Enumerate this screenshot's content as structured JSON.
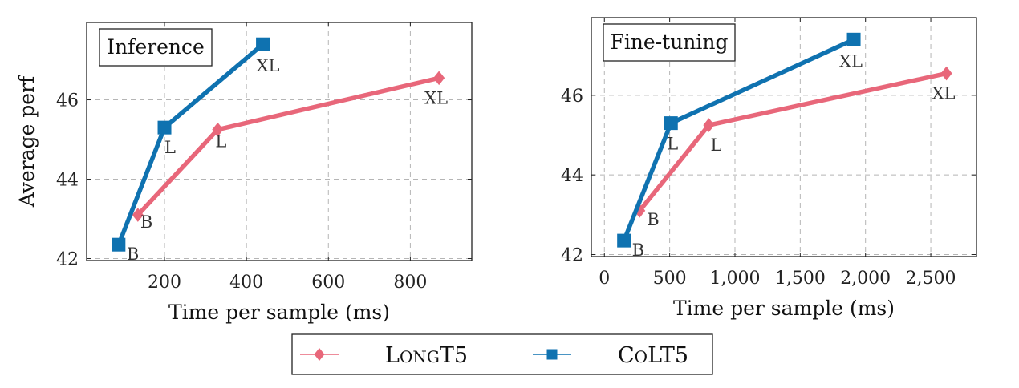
{
  "colors": {
    "longt5": "#e8677a",
    "colt5": "#0f72b0",
    "grid": "#b5b5b5"
  },
  "legend": {
    "items": [
      {
        "name": "LongT5",
        "series": "longt5",
        "marker": "diamond"
      },
      {
        "name": "CoLT5",
        "series": "colt5",
        "marker": "square"
      }
    ]
  },
  "chart_data": [
    {
      "type": "line",
      "title": "Inference",
      "xlabel": "Time per sample (ms)",
      "ylabel": "Average perf",
      "xlim": [
        10,
        950
      ],
      "ylim": [
        41.95,
        47.95
      ],
      "xticks": [
        200,
        400,
        600,
        800
      ],
      "xtick_labels": [
        "200",
        "400",
        "600",
        "800"
      ],
      "yticks": [
        42,
        44,
        46
      ],
      "ytick_labels": [
        "42",
        "44",
        "46"
      ],
      "grid": true,
      "legend_position": "bottom-center",
      "series": [
        {
          "name": "LongT5",
          "key": "longt5",
          "marker": "diamond",
          "x": [
            135,
            330,
            870
          ],
          "y": [
            43.1,
            45.25,
            46.55
          ],
          "labels": [
            "B",
            "L",
            "XL"
          ]
        },
        {
          "name": "CoLT5",
          "key": "colt5",
          "marker": "square",
          "x": [
            88,
            200,
            440
          ],
          "y": [
            42.35,
            45.3,
            47.4
          ],
          "labels": [
            "B",
            "L",
            "XL"
          ]
        }
      ]
    },
    {
      "type": "line",
      "title": "Fine-tuning",
      "xlabel": "Time per sample (ms)",
      "ylabel": "",
      "xlim": [
        -100,
        2850
      ],
      "ylim": [
        41.95,
        47.95
      ],
      "xticks": [
        0,
        500,
        1000,
        1500,
        2000,
        2500
      ],
      "xtick_labels": [
        "0",
        "500",
        "1,000",
        "1,500",
        "2,000",
        "2,500"
      ],
      "yticks": [
        42,
        44,
        46
      ],
      "ytick_labels": [
        "42",
        "44",
        "46"
      ],
      "grid": true,
      "series": [
        {
          "name": "LongT5",
          "key": "longt5",
          "marker": "diamond",
          "x": [
            270,
            800,
            2620
          ],
          "y": [
            43.1,
            45.25,
            46.55
          ],
          "labels": [
            "B",
            "L",
            "XL"
          ]
        },
        {
          "name": "CoLT5",
          "key": "colt5",
          "marker": "square",
          "x": [
            150,
            510,
            1910
          ],
          "y": [
            42.35,
            45.3,
            47.4
          ],
          "labels": [
            "B",
            "L",
            "XL"
          ]
        }
      ]
    }
  ]
}
